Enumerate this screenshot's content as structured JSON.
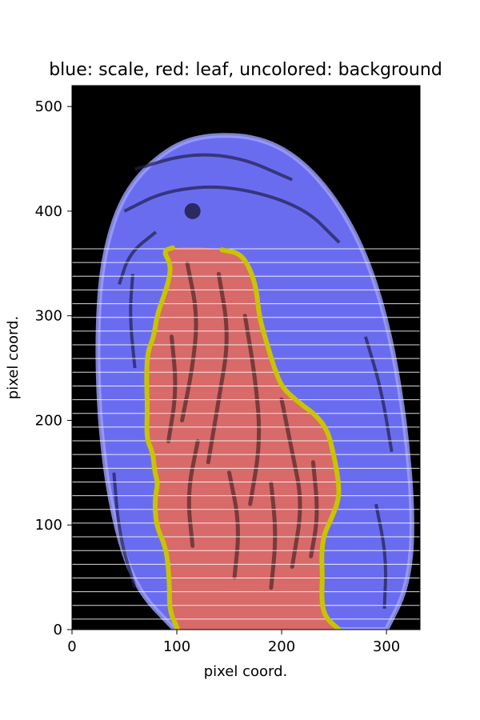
{
  "chart_data": {
    "type": "image",
    "title": "blue: scale, red: leaf, uncolored: background",
    "xlabel": "pixel coord.",
    "ylabel": "pixel coord.",
    "xlim": [
      0,
      332
    ],
    "ylim": [
      0,
      520
    ],
    "xticks": [
      0,
      100,
      200,
      300
    ],
    "yticks": [
      0,
      100,
      200,
      300,
      400,
      500
    ],
    "legend": [
      {
        "color": "blue",
        "meaning": "scale"
      },
      {
        "color": "red",
        "meaning": "leaf"
      },
      {
        "color": "uncolored",
        "meaning": "background"
      }
    ],
    "colors": {
      "background": "#000000",
      "scale": "#6a6cf0",
      "scale_edge": "#9fa2ff",
      "leaf": "#d86a6a",
      "boundary": "#c8c400",
      "scanlines": "#ffffff"
    },
    "scale_outline": [
      [
        98,
        0
      ],
      [
        60,
        40
      ],
      [
        38,
        110
      ],
      [
        26,
        200
      ],
      [
        24,
        290
      ],
      [
        30,
        360
      ],
      [
        50,
        420
      ],
      [
        90,
        460
      ],
      [
        130,
        474
      ],
      [
        185,
        470
      ],
      [
        230,
        440
      ],
      [
        272,
        380
      ],
      [
        300,
        300
      ],
      [
        318,
        200
      ],
      [
        326,
        100
      ],
      [
        320,
        40
      ],
      [
        300,
        0
      ]
    ],
    "leaf_left_boundary": [
      [
        96,
        365
      ],
      [
        87,
        362
      ],
      [
        94,
        350
      ],
      [
        93,
        336
      ],
      [
        88,
        320
      ],
      [
        81,
        300
      ],
      [
        78,
        280
      ],
      [
        72,
        265
      ],
      [
        71,
        240
      ],
      [
        72,
        213
      ],
      [
        71,
        182
      ],
      [
        77,
        170
      ],
      [
        79,
        150
      ],
      [
        82,
        140
      ],
      [
        79,
        125
      ],
      [
        80,
        100
      ],
      [
        89,
        80
      ],
      [
        92,
        60
      ],
      [
        93,
        40
      ],
      [
        93,
        18
      ],
      [
        101,
        0
      ]
    ],
    "leaf_right_boundary": [
      [
        143,
        363
      ],
      [
        160,
        360
      ],
      [
        170,
        345
      ],
      [
        176,
        325
      ],
      [
        178,
        305
      ],
      [
        181,
        290
      ],
      [
        187,
        270
      ],
      [
        193,
        250
      ],
      [
        200,
        232
      ],
      [
        215,
        218
      ],
      [
        233,
        205
      ],
      [
        244,
        190
      ],
      [
        249,
        170
      ],
      [
        253,
        150
      ],
      [
        255,
        132
      ],
      [
        253,
        120
      ],
      [
        247,
        105
      ],
      [
        240,
        90
      ],
      [
        238,
        70
      ],
      [
        239,
        50
      ],
      [
        238,
        30
      ],
      [
        241,
        12
      ],
      [
        255,
        0
      ]
    ],
    "scanline_y_top": 364,
    "scanline_y_bottom": 10,
    "scanline_count": 28,
    "scanline_x_start": 0,
    "scanline_x_end": 332
  }
}
